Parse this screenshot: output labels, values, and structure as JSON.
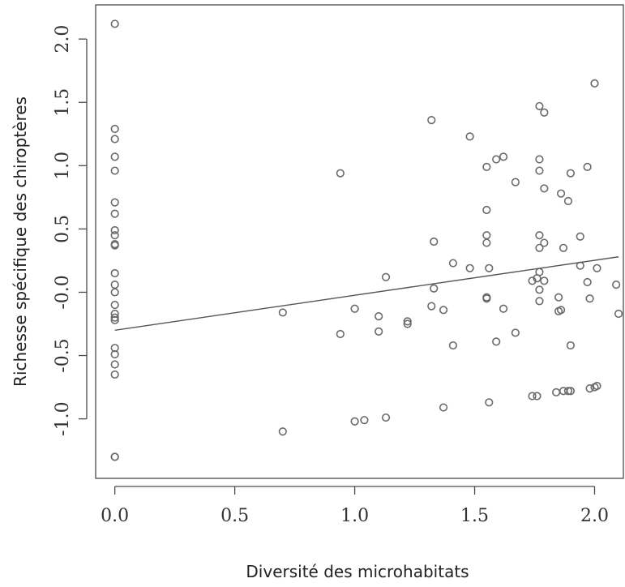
{
  "chart_data": {
    "type": "scatter",
    "xlabel": "Diversité des microhabitats",
    "ylabel": "Richesse spécifique des chiroptères",
    "xlim": [
      -0.08,
      2.12
    ],
    "ylim": [
      -1.47,
      2.27
    ],
    "xticks": [
      0.0,
      0.5,
      1.0,
      1.5,
      2.0
    ],
    "xtick_labels": [
      "0.0",
      "0.5",
      "1.0",
      "1.5",
      "2.0"
    ],
    "yticks": [
      -1.0,
      -0.5,
      0.0,
      0.5,
      1.0,
      1.5,
      2.0
    ],
    "ytick_labels": [
      "-1.0",
      "-0.5",
      "-0.0",
      "0.5",
      "1.0",
      "1.5",
      "2.0"
    ],
    "grid": false,
    "regression_line": {
      "x": [
        0.0,
        2.1
      ],
      "y": [
        -0.3,
        0.28
      ]
    },
    "points": [
      {
        "x": 0.0,
        "y": 2.12
      },
      {
        "x": 0.0,
        "y": 1.29
      },
      {
        "x": 0.0,
        "y": 1.21
      },
      {
        "x": 0.0,
        "y": 1.07
      },
      {
        "x": 0.0,
        "y": 0.96
      },
      {
        "x": 0.0,
        "y": 0.71
      },
      {
        "x": 0.0,
        "y": 0.62
      },
      {
        "x": 0.0,
        "y": 0.49
      },
      {
        "x": 0.0,
        "y": 0.45
      },
      {
        "x": 0.0,
        "y": 0.38
      },
      {
        "x": 0.0,
        "y": 0.37
      },
      {
        "x": 0.0,
        "y": 0.15
      },
      {
        "x": 0.0,
        "y": 0.06
      },
      {
        "x": 0.0,
        "y": 0.0
      },
      {
        "x": 0.0,
        "y": -0.1
      },
      {
        "x": 0.0,
        "y": -0.17
      },
      {
        "x": 0.0,
        "y": -0.2
      },
      {
        "x": 0.0,
        "y": -0.22
      },
      {
        "x": 0.0,
        "y": -0.44
      },
      {
        "x": 0.0,
        "y": -0.49
      },
      {
        "x": 0.0,
        "y": -0.57
      },
      {
        "x": 0.0,
        "y": -0.65
      },
      {
        "x": 0.0,
        "y": -1.3
      },
      {
        "x": 0.0,
        "y": -1.3
      },
      {
        "x": 0.7,
        "y": -0.16
      },
      {
        "x": 0.7,
        "y": -1.1
      },
      {
        "x": 0.94,
        "y": 0.94
      },
      {
        "x": 0.94,
        "y": -0.33
      },
      {
        "x": 1.0,
        "y": -0.13
      },
      {
        "x": 1.0,
        "y": -1.02
      },
      {
        "x": 1.04,
        "y": -1.01
      },
      {
        "x": 1.1,
        "y": -0.19
      },
      {
        "x": 1.1,
        "y": -0.31
      },
      {
        "x": 1.13,
        "y": 0.12
      },
      {
        "x": 1.13,
        "y": -0.99
      },
      {
        "x": 1.22,
        "y": -0.23
      },
      {
        "x": 1.22,
        "y": -0.25
      },
      {
        "x": 1.32,
        "y": 1.36
      },
      {
        "x": 1.32,
        "y": -0.11
      },
      {
        "x": 1.33,
        "y": 0.4
      },
      {
        "x": 1.33,
        "y": 0.03
      },
      {
        "x": 1.37,
        "y": -0.14
      },
      {
        "x": 1.37,
        "y": -0.91
      },
      {
        "x": 1.41,
        "y": 0.23
      },
      {
        "x": 1.41,
        "y": -0.42
      },
      {
        "x": 1.48,
        "y": 1.23
      },
      {
        "x": 1.48,
        "y": 0.19
      },
      {
        "x": 1.55,
        "y": 0.99
      },
      {
        "x": 1.55,
        "y": 0.65
      },
      {
        "x": 1.55,
        "y": 0.45
      },
      {
        "x": 1.55,
        "y": 0.39
      },
      {
        "x": 1.55,
        "y": -0.04
      },
      {
        "x": 1.55,
        "y": -0.05
      },
      {
        "x": 1.56,
        "y": 0.19
      },
      {
        "x": 1.56,
        "y": -0.87
      },
      {
        "x": 1.59,
        "y": 1.05
      },
      {
        "x": 1.59,
        "y": -0.39
      },
      {
        "x": 1.62,
        "y": 1.07
      },
      {
        "x": 1.62,
        "y": -0.13
      },
      {
        "x": 1.67,
        "y": 0.87
      },
      {
        "x": 1.67,
        "y": -0.32
      },
      {
        "x": 1.74,
        "y": 0.09
      },
      {
        "x": 1.74,
        "y": -0.82
      },
      {
        "x": 1.76,
        "y": 0.11
      },
      {
        "x": 1.76,
        "y": -0.82
      },
      {
        "x": 1.77,
        "y": 1.47
      },
      {
        "x": 1.77,
        "y": 1.05
      },
      {
        "x": 1.77,
        "y": 0.96
      },
      {
        "x": 1.77,
        "y": 0.45
      },
      {
        "x": 1.77,
        "y": 0.35
      },
      {
        "x": 1.77,
        "y": 0.16
      },
      {
        "x": 1.77,
        "y": 0.02
      },
      {
        "x": 1.77,
        "y": -0.07
      },
      {
        "x": 1.79,
        "y": 1.42
      },
      {
        "x": 1.79,
        "y": 0.82
      },
      {
        "x": 1.79,
        "y": 0.39
      },
      {
        "x": 1.79,
        "y": 0.09
      },
      {
        "x": 1.84,
        "y": -0.79
      },
      {
        "x": 1.85,
        "y": -0.04
      },
      {
        "x": 1.85,
        "y": -0.15
      },
      {
        "x": 1.86,
        "y": -0.14
      },
      {
        "x": 1.86,
        "y": 0.78
      },
      {
        "x": 1.87,
        "y": 0.35
      },
      {
        "x": 1.87,
        "y": -0.78
      },
      {
        "x": 1.89,
        "y": 0.72
      },
      {
        "x": 1.89,
        "y": -0.78
      },
      {
        "x": 1.9,
        "y": 0.94
      },
      {
        "x": 1.9,
        "y": -0.42
      },
      {
        "x": 1.9,
        "y": -0.78
      },
      {
        "x": 1.94,
        "y": 0.44
      },
      {
        "x": 1.94,
        "y": 0.21
      },
      {
        "x": 1.97,
        "y": 0.99
      },
      {
        "x": 1.97,
        "y": 0.08
      },
      {
        "x": 1.98,
        "y": -0.05
      },
      {
        "x": 1.98,
        "y": -0.76
      },
      {
        "x": 2.0,
        "y": 1.65
      },
      {
        "x": 2.0,
        "y": -0.75
      },
      {
        "x": 2.01,
        "y": 0.19
      },
      {
        "x": 2.01,
        "y": -0.74
      },
      {
        "x": 2.09,
        "y": 0.06
      },
      {
        "x": 2.1,
        "y": -0.17
      }
    ]
  }
}
